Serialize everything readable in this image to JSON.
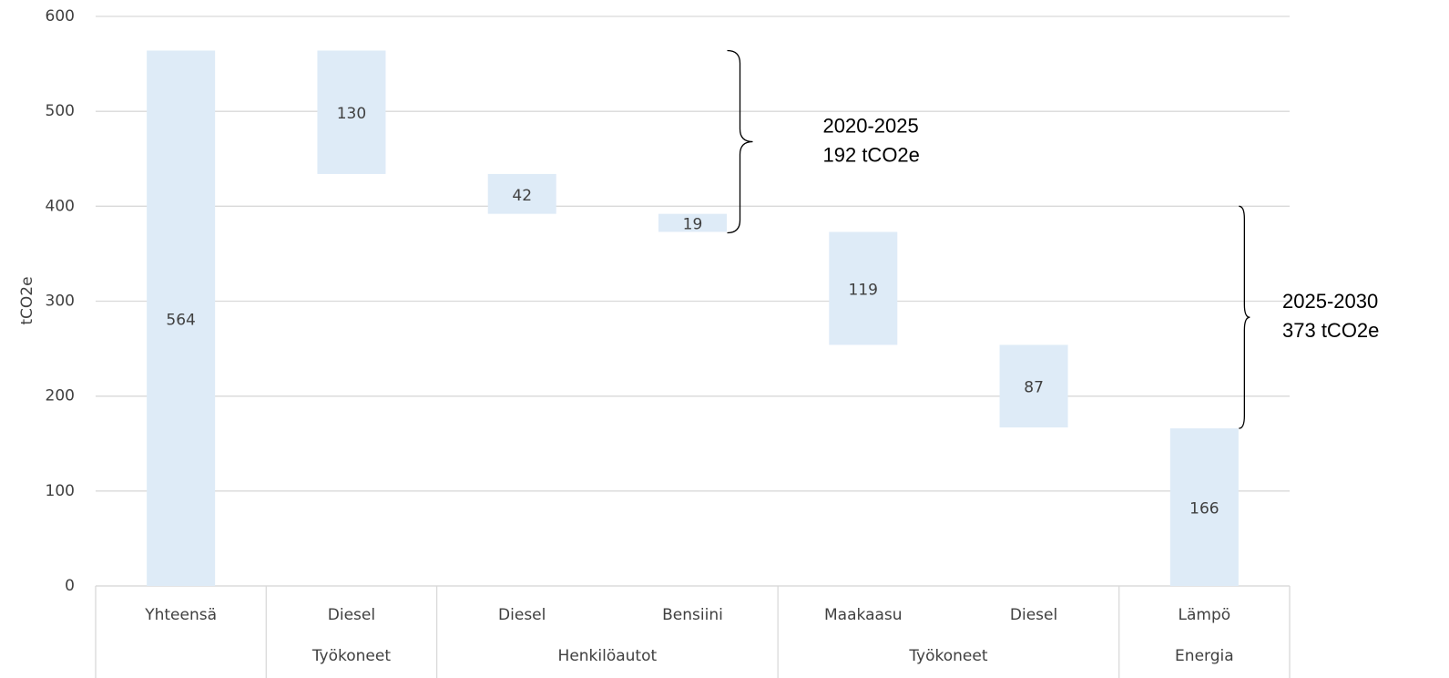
{
  "chart_data": {
    "type": "waterfall",
    "y_label": "tCO2e",
    "categories": [
      "Yhteensä",
      "Diesel",
      "Diesel",
      "Bensiini",
      "Maakaasu",
      "Diesel",
      "Lämpö"
    ],
    "category_groups": [
      null,
      "Työkoneet",
      "Henkilöautot",
      "Henkilöautot",
      "Työkoneet",
      "Työkoneet",
      "Energia"
    ],
    "values": [
      564,
      -130,
      -42,
      -19,
      -119,
      -87,
      166
    ],
    "value_labels": [
      "564",
      "130",
      "42",
      "19",
      "119",
      "87",
      "166"
    ],
    "measure": [
      "absolute",
      "relative",
      "relative",
      "relative",
      "relative",
      "relative",
      "absolute"
    ],
    "color": "#deebf7",
    "ylim": [
      0,
      600
    ],
    "yticks": [
      0,
      100,
      200,
      300,
      400,
      500,
      600
    ],
    "grid": true,
    "annotations": [
      {
        "lines": [
          "2020-2025",
          "192 tCO2e"
        ],
        "range": [
          564,
          372
        ],
        "category": 3
      },
      {
        "lines": [
          "2025-2030",
          "373 tCO2e"
        ],
        "range": [
          400,
          166
        ],
        "category": 6
      }
    ]
  }
}
